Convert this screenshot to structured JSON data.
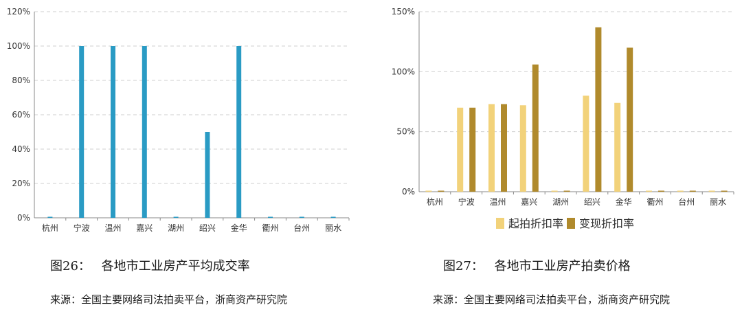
{
  "charts": {
    "chart_data": [
      {
        "type": "bar",
        "categories": [
          "杭州",
          "宁波",
          "温州",
          "嘉兴",
          "湖州",
          "绍兴",
          "金华",
          "衢州",
          "台州",
          "丽水"
        ],
        "series": [
          {
            "values": [
              0,
              100,
              100,
              100,
              0,
              50,
              100,
              0,
              0,
              0
            ],
            "color": "#2a9bc4"
          }
        ],
        "yticks": [
          "0%",
          "20%",
          "40%",
          "60%",
          "80%",
          "100%",
          "120%"
        ],
        "ylim": [
          0,
          120
        ],
        "grid": true,
        "title": "",
        "xlabel": "",
        "ylabel": ""
      },
      {
        "type": "bar",
        "categories": [
          "杭州",
          "宁波",
          "温州",
          "嘉兴",
          "湖州",
          "绍兴",
          "金华",
          "衢州",
          "台州",
          "丽水"
        ],
        "series": [
          {
            "name": "起拍折扣率",
            "values": [
              0,
              70,
              73,
              72,
              0,
              80,
              74,
              0,
              0,
              0
            ],
            "color": "#f2d27a"
          },
          {
            "name": "变现折扣率",
            "values": [
              0,
              70,
              73,
              106,
              0,
              137,
              120,
              0,
              0,
              0
            ],
            "color": "#b08a2c"
          }
        ],
        "yticks": [
          "0%",
          "50%",
          "100%",
          "150%"
        ],
        "ylim": [
          0,
          150
        ],
        "grid": true,
        "legend_position": "bottom",
        "title": "",
        "xlabel": "",
        "ylabel": ""
      }
    ]
  },
  "captions": {
    "left": {
      "figure": "图26：",
      "title": "各地市工业房产平均成交率"
    },
    "right": {
      "figure": "图27：",
      "title": "各地市工业房产拍卖价格"
    }
  },
  "sources": {
    "left": "来源：全国主要网络司法拍卖平台，浙商资产研究院",
    "right": "来源：全国主要网络司法拍卖平台，浙商资产研究院"
  }
}
